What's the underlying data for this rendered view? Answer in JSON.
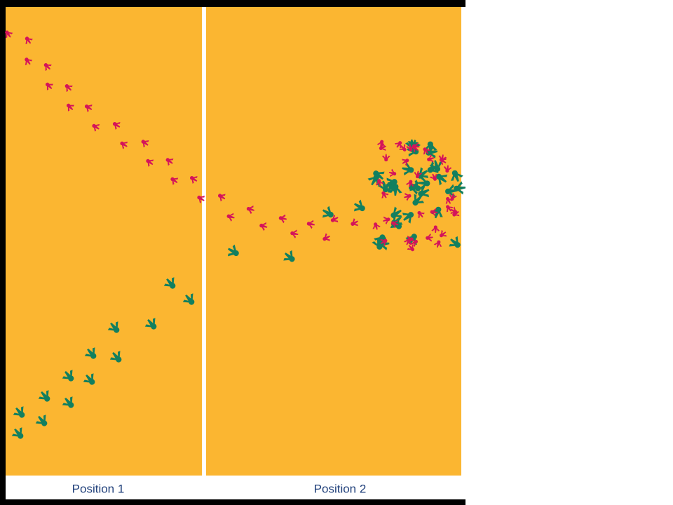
{
  "panels": [
    {
      "label": "Position 1"
    },
    {
      "label": "Position 2"
    }
  ]
}
